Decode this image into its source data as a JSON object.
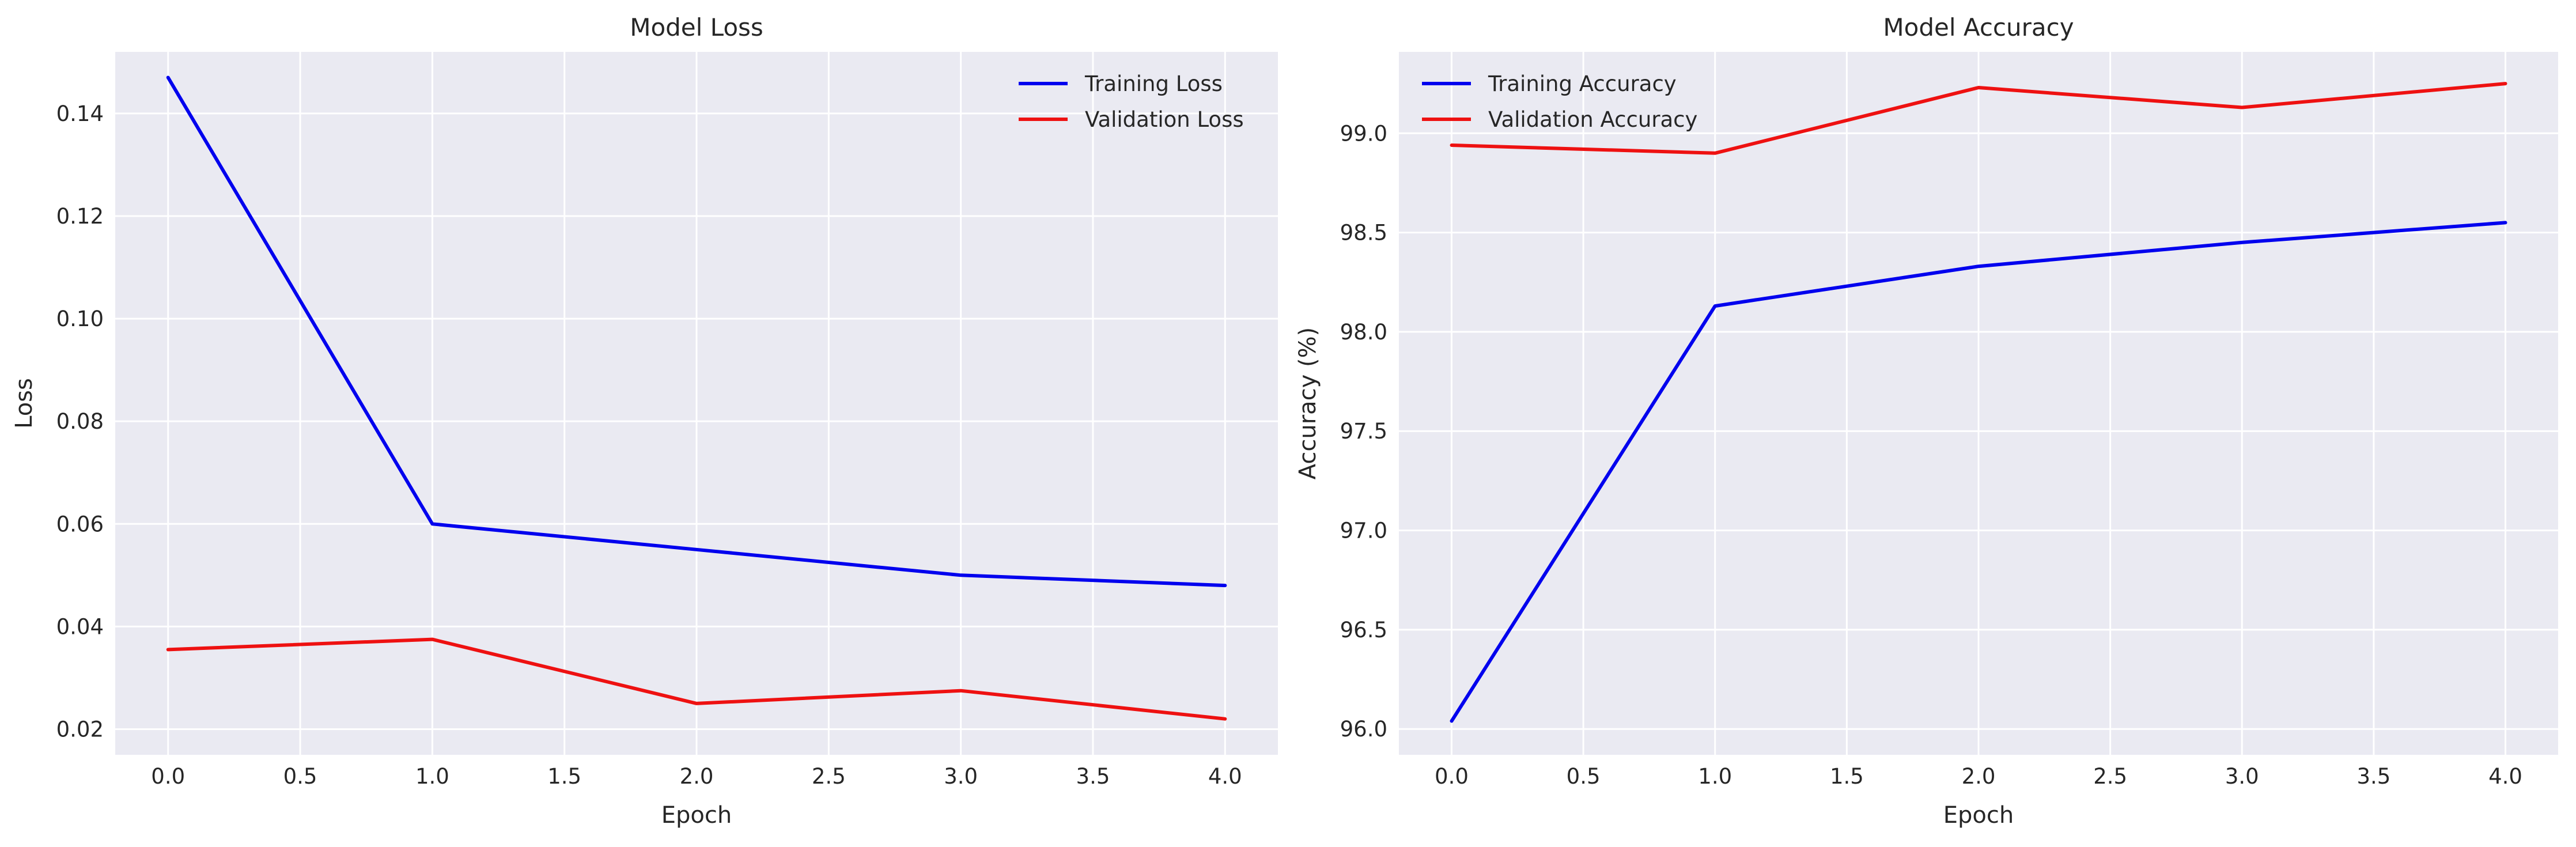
{
  "chart_data": [
    {
      "type": "line",
      "title": "Model Loss",
      "xlabel": "Epoch",
      "ylabel": "Loss",
      "x": [
        0,
        1,
        2,
        3,
        4
      ],
      "xlim": [
        -0.2,
        4.2
      ],
      "ylim": [
        0.015,
        0.152
      ],
      "xticks": [
        0.0,
        0.5,
        1.0,
        1.5,
        2.0,
        2.5,
        3.0,
        3.5,
        4.0
      ],
      "xtick_labels": [
        "0.0",
        "0.5",
        "1.0",
        "1.5",
        "2.0",
        "2.5",
        "3.0",
        "3.5",
        "4.0"
      ],
      "yticks": [
        0.02,
        0.04,
        0.06,
        0.08,
        0.1,
        0.12,
        0.14
      ],
      "ytick_labels": [
        "0.02",
        "0.04",
        "0.06",
        "0.08",
        "0.10",
        "0.12",
        "0.14"
      ],
      "grid": true,
      "legend": "top-right",
      "series": [
        {
          "name": "Training Loss",
          "color": "#0000ee",
          "values": [
            0.147,
            0.06,
            0.055,
            0.05,
            0.048
          ]
        },
        {
          "name": "Validation Loss",
          "color": "#ee1111",
          "values": [
            0.0355,
            0.0375,
            0.025,
            0.0275,
            0.022
          ]
        }
      ]
    },
    {
      "type": "line",
      "title": "Model Accuracy",
      "xlabel": "Epoch",
      "ylabel": "Accuracy (%)",
      "x": [
        0,
        1,
        2,
        3,
        4
      ],
      "xlim": [
        -0.2,
        4.2
      ],
      "ylim": [
        95.87,
        99.41
      ],
      "xticks": [
        0.0,
        0.5,
        1.0,
        1.5,
        2.0,
        2.5,
        3.0,
        3.5,
        4.0
      ],
      "xtick_labels": [
        "0.0",
        "0.5",
        "1.0",
        "1.5",
        "2.0",
        "2.5",
        "3.0",
        "3.5",
        "4.0"
      ],
      "yticks": [
        96.0,
        96.5,
        97.0,
        97.5,
        98.0,
        98.5,
        99.0
      ],
      "ytick_labels": [
        "96.0",
        "96.5",
        "97.0",
        "97.5",
        "98.0",
        "98.5",
        "99.0"
      ],
      "grid": true,
      "legend": "top-left",
      "series": [
        {
          "name": "Training Accuracy",
          "color": "#0000ee",
          "values": [
            96.04,
            98.13,
            98.33,
            98.45,
            98.55
          ]
        },
        {
          "name": "Validation Accuracy",
          "color": "#ee1111",
          "values": [
            98.94,
            98.9,
            99.23,
            99.13,
            99.25
          ]
        }
      ]
    }
  ]
}
